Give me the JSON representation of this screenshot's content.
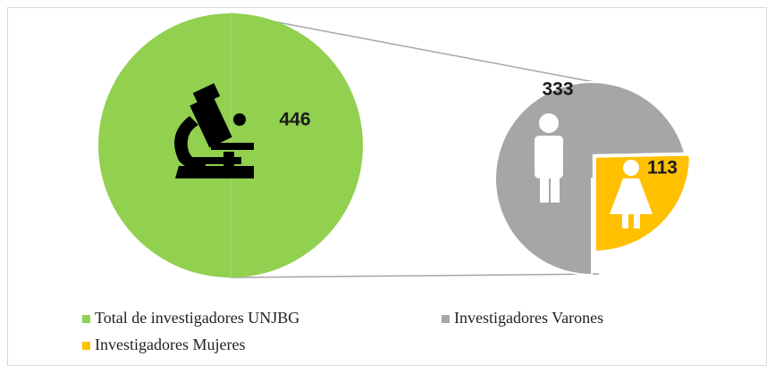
{
  "chart_data": {
    "type": "pie",
    "categories": [
      "Total de investigadores UNJBG",
      "Investigadores Varones",
      "Investigadores Mujeres"
    ],
    "values": [
      446,
      333,
      113
    ],
    "colors": [
      "#92d050",
      "#a6a6a6",
      "#ffc000"
    ],
    "legend": "bottom"
  }
}
